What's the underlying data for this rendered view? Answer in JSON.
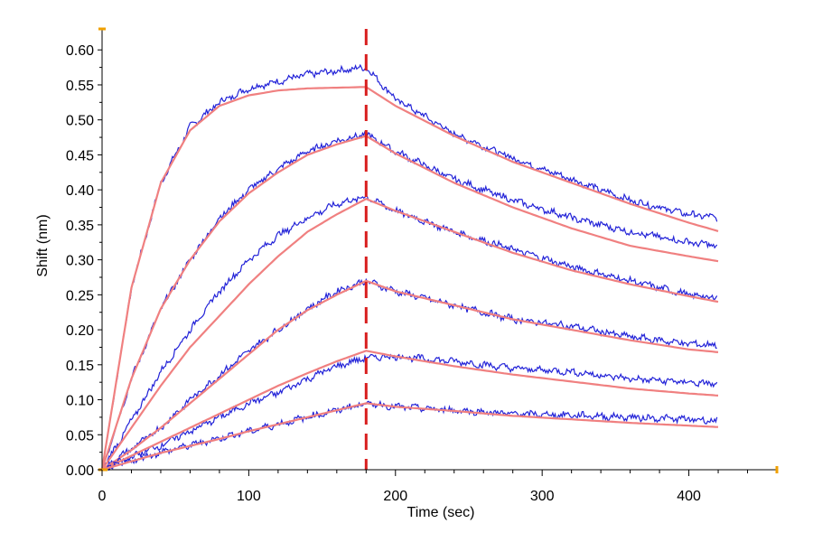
{
  "chart_data": {
    "type": "line",
    "xlabel": "Time (sec)",
    "ylabel": "Shift (nm)",
    "xlim": [
      0,
      460
    ],
    "ylim": [
      0,
      0.63
    ],
    "x_ticks": [
      0,
      100,
      200,
      300,
      400
    ],
    "y_ticks": [
      0.0,
      0.05,
      0.1,
      0.15,
      0.2,
      0.25,
      0.3,
      0.35,
      0.4,
      0.45,
      0.5,
      0.55,
      0.6
    ],
    "grid": false,
    "legend": "none",
    "marker_line_x": 180,
    "colors": {
      "data": "#2323d8",
      "fit": "#f08080",
      "marker": "#d81e1e",
      "axis_accent": "#f0a000"
    },
    "series": [
      {
        "kind": "measured",
        "x": [
          0,
          20,
          40,
          60,
          80,
          100,
          120,
          140,
          160,
          180,
          200,
          240,
          280,
          320,
          360,
          400,
          420
        ],
        "y": [
          0,
          0.26,
          0.41,
          0.49,
          0.525,
          0.545,
          0.555,
          0.565,
          0.57,
          0.575,
          0.53,
          0.48,
          0.445,
          0.415,
          0.385,
          0.365,
          0.36
        ]
      },
      {
        "kind": "fit",
        "x": [
          0,
          20,
          40,
          60,
          80,
          100,
          120,
          140,
          160,
          180,
          200,
          240,
          280,
          320,
          360,
          400,
          420
        ],
        "y": [
          0,
          0.26,
          0.41,
          0.485,
          0.52,
          0.535,
          0.542,
          0.545,
          0.546,
          0.547,
          0.52,
          0.477,
          0.44,
          0.41,
          0.38,
          0.353,
          0.341
        ]
      },
      {
        "kind": "measured",
        "x": [
          0,
          20,
          40,
          60,
          80,
          100,
          120,
          140,
          160,
          180,
          200,
          240,
          280,
          320,
          360,
          400,
          420
        ],
        "y": [
          0,
          0.13,
          0.23,
          0.3,
          0.36,
          0.4,
          0.43,
          0.455,
          0.47,
          0.48,
          0.455,
          0.415,
          0.385,
          0.36,
          0.34,
          0.325,
          0.32
        ]
      },
      {
        "kind": "fit",
        "x": [
          0,
          20,
          40,
          60,
          80,
          100,
          120,
          140,
          160,
          180,
          200,
          240,
          280,
          320,
          360,
          400,
          420
        ],
        "y": [
          0,
          0.13,
          0.23,
          0.3,
          0.355,
          0.395,
          0.425,
          0.45,
          0.465,
          0.477,
          0.452,
          0.41,
          0.375,
          0.345,
          0.32,
          0.305,
          0.298
        ]
      },
      {
        "kind": "measured",
        "x": [
          0,
          20,
          40,
          60,
          80,
          100,
          120,
          140,
          160,
          180,
          200,
          240,
          280,
          320,
          360,
          400,
          420
        ],
        "y": [
          0,
          0.07,
          0.14,
          0.2,
          0.255,
          0.3,
          0.335,
          0.36,
          0.38,
          0.39,
          0.37,
          0.34,
          0.315,
          0.29,
          0.27,
          0.25,
          0.245
        ]
      },
      {
        "kind": "fit",
        "x": [
          0,
          20,
          40,
          60,
          80,
          100,
          120,
          140,
          160,
          180,
          200,
          240,
          280,
          320,
          360,
          400,
          420
        ],
        "y": [
          0,
          0.06,
          0.12,
          0.175,
          0.22,
          0.265,
          0.305,
          0.34,
          0.365,
          0.387,
          0.37,
          0.34,
          0.31,
          0.285,
          0.265,
          0.248,
          0.24
        ]
      },
      {
        "kind": "measured",
        "x": [
          0,
          20,
          40,
          60,
          80,
          100,
          120,
          140,
          160,
          180,
          200,
          240,
          280,
          320,
          360,
          400,
          420
        ],
        "y": [
          0,
          0.03,
          0.06,
          0.1,
          0.135,
          0.17,
          0.2,
          0.23,
          0.255,
          0.27,
          0.255,
          0.235,
          0.215,
          0.205,
          0.19,
          0.18,
          0.178
        ]
      },
      {
        "kind": "fit",
        "x": [
          0,
          20,
          40,
          60,
          80,
          100,
          120,
          140,
          160,
          180,
          200,
          240,
          280,
          320,
          360,
          400,
          420
        ],
        "y": [
          0,
          0.028,
          0.06,
          0.095,
          0.13,
          0.165,
          0.2,
          0.228,
          0.25,
          0.27,
          0.255,
          0.235,
          0.215,
          0.2,
          0.185,
          0.172,
          0.168
        ]
      },
      {
        "kind": "measured",
        "x": [
          0,
          20,
          40,
          60,
          80,
          100,
          120,
          140,
          160,
          180,
          200,
          240,
          280,
          320,
          360,
          400,
          420
        ],
        "y": [
          0,
          0.018,
          0.035,
          0.055,
          0.075,
          0.095,
          0.11,
          0.13,
          0.148,
          0.16,
          0.162,
          0.155,
          0.145,
          0.14,
          0.13,
          0.125,
          0.122
        ]
      },
      {
        "kind": "fit",
        "x": [
          0,
          20,
          40,
          60,
          80,
          100,
          120,
          140,
          160,
          180,
          200,
          240,
          280,
          320,
          360,
          400,
          420
        ],
        "y": [
          0,
          0.02,
          0.04,
          0.06,
          0.08,
          0.1,
          0.12,
          0.138,
          0.155,
          0.17,
          0.162,
          0.148,
          0.136,
          0.126,
          0.116,
          0.109,
          0.106
        ]
      },
      {
        "kind": "measured",
        "x": [
          0,
          20,
          40,
          60,
          80,
          100,
          120,
          140,
          160,
          180,
          200,
          240,
          280,
          320,
          360,
          400,
          420
        ],
        "y": [
          0,
          0.012,
          0.025,
          0.035,
          0.045,
          0.055,
          0.065,
          0.075,
          0.085,
          0.095,
          0.09,
          0.085,
          0.08,
          0.078,
          0.075,
          0.072,
          0.07
        ]
      },
      {
        "kind": "fit",
        "x": [
          0,
          20,
          40,
          60,
          80,
          100,
          120,
          140,
          160,
          180,
          200,
          240,
          280,
          320,
          360,
          400,
          420
        ],
        "y": [
          0,
          0.012,
          0.024,
          0.034,
          0.044,
          0.055,
          0.065,
          0.075,
          0.085,
          0.095,
          0.09,
          0.084,
          0.077,
          0.072,
          0.067,
          0.063,
          0.061
        ]
      }
    ]
  }
}
